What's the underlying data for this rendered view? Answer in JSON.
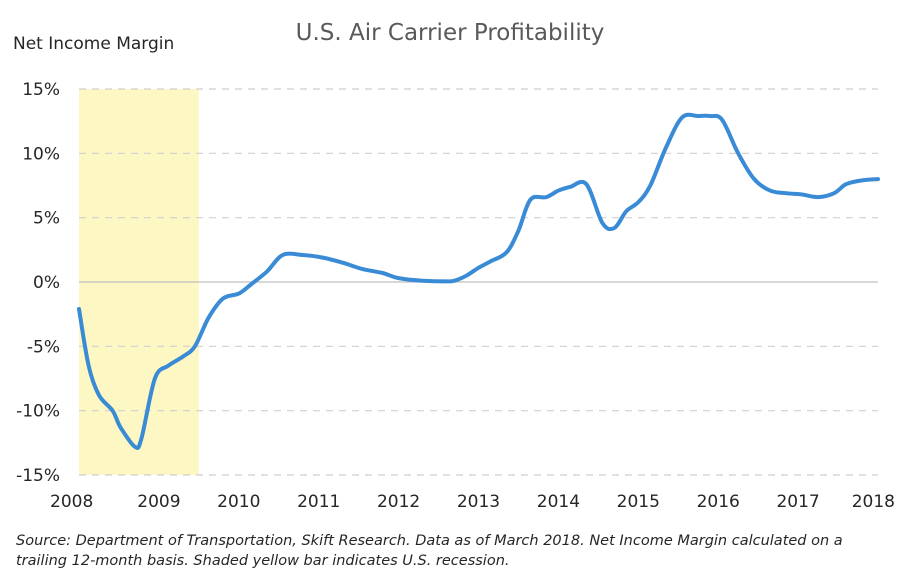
{
  "chart_data": {
    "type": "line",
    "title": "U.S. Air Carrier Profitability",
    "ylabel": "Net Income Margin",
    "xlabel": "",
    "xlim": [
      2008,
      2018
    ],
    "ylim": [
      -15,
      15
    ],
    "x_ticks": [
      2008,
      2009,
      2010,
      2011,
      2012,
      2013,
      2014,
      2015,
      2016,
      2017,
      2018
    ],
    "y_ticks": [
      15,
      10,
      5,
      0,
      -5,
      -10,
      -15
    ],
    "y_tick_labels": [
      "15%",
      "10%",
      "5%",
      "0%",
      "-5%",
      "-10%",
      "-15%"
    ],
    "grid": true,
    "recession_band": [
      2008,
      2009.5
    ],
    "series": [
      {
        "values_unit": "percent",
        "points": [
          [
            2008.0,
            -2.1
          ],
          [
            2008.12,
            -6.5
          ],
          [
            2008.25,
            -8.8
          ],
          [
            2008.42,
            -10.0
          ],
          [
            2008.52,
            -11.3
          ],
          [
            2008.7,
            -12.8
          ],
          [
            2008.78,
            -12.2
          ],
          [
            2008.95,
            -7.5
          ],
          [
            2009.12,
            -6.5
          ],
          [
            2009.3,
            -5.8
          ],
          [
            2009.45,
            -5.0
          ],
          [
            2009.62,
            -2.8
          ],
          [
            2009.8,
            -1.3
          ],
          [
            2010.0,
            -0.9
          ],
          [
            2010.15,
            -0.2
          ],
          [
            2010.35,
            0.8
          ],
          [
            2010.55,
            2.1
          ],
          [
            2010.8,
            2.1
          ],
          [
            2011.05,
            1.9
          ],
          [
            2011.3,
            1.5
          ],
          [
            2011.55,
            1.0
          ],
          [
            2011.8,
            0.7
          ],
          [
            2012.0,
            0.3
          ],
          [
            2012.3,
            0.1
          ],
          [
            2012.6,
            0.05
          ],
          [
            2012.7,
            0.1
          ],
          [
            2012.85,
            0.5
          ],
          [
            2013.0,
            1.1
          ],
          [
            2013.15,
            1.6
          ],
          [
            2013.35,
            2.3
          ],
          [
            2013.5,
            4.0
          ],
          [
            2013.65,
            6.4
          ],
          [
            2013.85,
            6.6
          ],
          [
            2014.0,
            7.1
          ],
          [
            2014.15,
            7.4
          ],
          [
            2014.35,
            7.6
          ],
          [
            2014.55,
            4.6
          ],
          [
            2014.7,
            4.2
          ],
          [
            2014.85,
            5.5
          ],
          [
            2015.0,
            6.2
          ],
          [
            2015.15,
            7.5
          ],
          [
            2015.35,
            10.5
          ],
          [
            2015.55,
            12.8
          ],
          [
            2015.75,
            12.9
          ],
          [
            2015.9,
            12.9
          ],
          [
            2016.05,
            12.6
          ],
          [
            2016.25,
            10.0
          ],
          [
            2016.45,
            8.0
          ],
          [
            2016.65,
            7.1
          ],
          [
            2016.85,
            6.9
          ],
          [
            2017.05,
            6.8
          ],
          [
            2017.25,
            6.6
          ],
          [
            2017.45,
            6.9
          ],
          [
            2017.6,
            7.6
          ],
          [
            2017.8,
            7.9
          ],
          [
            2018.0,
            8.0
          ]
        ],
        "color": "#3a8bd6"
      }
    ]
  },
  "colors": {
    "line": "#3a8bd6",
    "recession": "#fdf7c3",
    "grid": "#cfcfcf",
    "axis": "#bfbfbf"
  },
  "source_note": "Source: Department of Transportation, Skift Research. Data as of March 2018. Net Income Margin calculated on a trailing 12-month basis. Shaded yellow bar indicates U.S. recession."
}
